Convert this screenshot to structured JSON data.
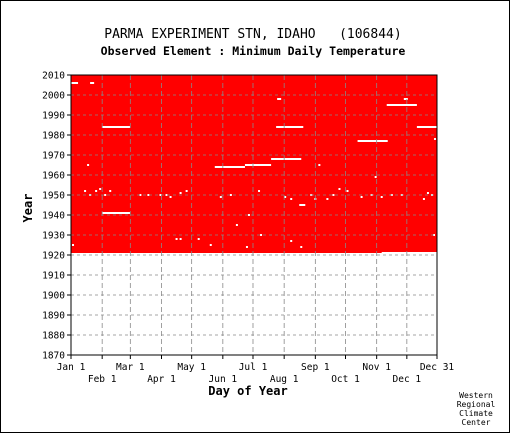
{
  "chart_data": {
    "type": "heatmap",
    "title": "PARMA EXPERIMENT STN, IDAHO   (106844)",
    "subtitle": "Observed Element : Minimum Daily Temperature",
    "xlabel": "Day of Year",
    "ylabel": "Year",
    "x_range_days": [
      1,
      365
    ],
    "ylim": [
      1870,
      2010
    ],
    "y_ticks": [
      1870,
      1880,
      1890,
      1900,
      1910,
      1920,
      1930,
      1940,
      1950,
      1960,
      1970,
      1980,
      1990,
      2000,
      2010
    ],
    "x_ticks_top_row": [
      {
        "label": "Jan 1",
        "day": 1
      },
      {
        "label": "Mar 1",
        "day": 60
      },
      {
        "label": "May 1",
        "day": 121
      },
      {
        "label": "Jul 1",
        "day": 182
      },
      {
        "label": "Sep 1",
        "day": 244
      },
      {
        "label": "Nov 1",
        "day": 305
      },
      {
        "label": "Dec 31",
        "day": 365
      }
    ],
    "x_ticks_bottom_row": [
      {
        "label": "Feb 1",
        "day": 32
      },
      {
        "label": "Apr 1",
        "day": 91
      },
      {
        "label": "Jun 1",
        "day": 152
      },
      {
        "label": "Aug 1",
        "day": 213
      },
      {
        "label": "Oct 1",
        "day": 274
      },
      {
        "label": "Dec 1",
        "day": 335
      }
    ],
    "grid": true,
    "data_color": "#ff0000",
    "missing_color": "#ffffff",
    "record_period_years": [
      1921,
      2010
    ],
    "missing_segments": [
      {
        "year": 1984,
        "day_start": 32,
        "day_end": 60
      },
      {
        "year": 1941,
        "day_start": 32,
        "day_end": 60
      },
      {
        "year": 1964,
        "day_start": 144,
        "day_end": 174
      },
      {
        "year": 1965,
        "day_start": 174,
        "day_end": 200
      },
      {
        "year": 1968,
        "day_start": 200,
        "day_end": 230
      },
      {
        "year": 1984,
        "day_start": 205,
        "day_end": 232
      },
      {
        "year": 1945,
        "day_start": 228,
        "day_end": 234
      },
      {
        "year": 1977,
        "day_start": 286,
        "day_end": 316
      },
      {
        "year": 1995,
        "day_start": 315,
        "day_end": 345
      },
      {
        "year": 1984,
        "day_start": 345,
        "day_end": 365
      },
      {
        "year": 1921,
        "day_start": 310,
        "day_end": 365
      },
      {
        "year": 2006,
        "day_start": 1,
        "day_end": 8
      },
      {
        "year": 2006,
        "day_start": 20,
        "day_end": 24
      },
      {
        "year": 1998,
        "day_start": 206,
        "day_end": 210
      },
      {
        "year": 1998,
        "day_start": 332,
        "day_end": 336
      }
    ],
    "missing_days": [
      [
        3,
        1925
      ],
      [
        15,
        1952
      ],
      [
        18,
        1965
      ],
      [
        20,
        1950
      ],
      [
        26,
        1952
      ],
      [
        30,
        1953
      ],
      [
        35,
        1950
      ],
      [
        40,
        1952
      ],
      [
        70,
        1950
      ],
      [
        78,
        1950
      ],
      [
        90,
        1950
      ],
      [
        96,
        1950
      ],
      [
        100,
        1949
      ],
      [
        110,
        1951
      ],
      [
        116,
        1952
      ],
      [
        106,
        1928
      ],
      [
        110,
        1928
      ],
      [
        128,
        1928
      ],
      [
        140,
        1925
      ],
      [
        150,
        1949
      ],
      [
        160,
        1950
      ],
      [
        166,
        1935
      ],
      [
        178,
        1940
      ],
      [
        176,
        1924
      ],
      [
        190,
        1930
      ],
      [
        188,
        1952
      ],
      [
        220,
        1927
      ],
      [
        230,
        1924
      ],
      [
        240,
        1950
      ],
      [
        244,
        1948
      ],
      [
        248,
        1965
      ],
      [
        256,
        1948
      ],
      [
        262,
        1950
      ],
      [
        268,
        1953
      ],
      [
        276,
        1952
      ],
      [
        290,
        1949
      ],
      [
        300,
        1950
      ],
      [
        304,
        1959
      ],
      [
        310,
        1949
      ],
      [
        320,
        1950
      ],
      [
        330,
        1950
      ],
      [
        352,
        1948
      ],
      [
        356,
        1951
      ],
      [
        360,
        1950
      ],
      [
        362,
        1930
      ],
      [
        363,
        1978
      ],
      [
        220,
        1948
      ],
      [
        214,
        1949
      ]
    ]
  },
  "credit": [
    "Western",
    "Regional",
    "Climate",
    "Center"
  ]
}
